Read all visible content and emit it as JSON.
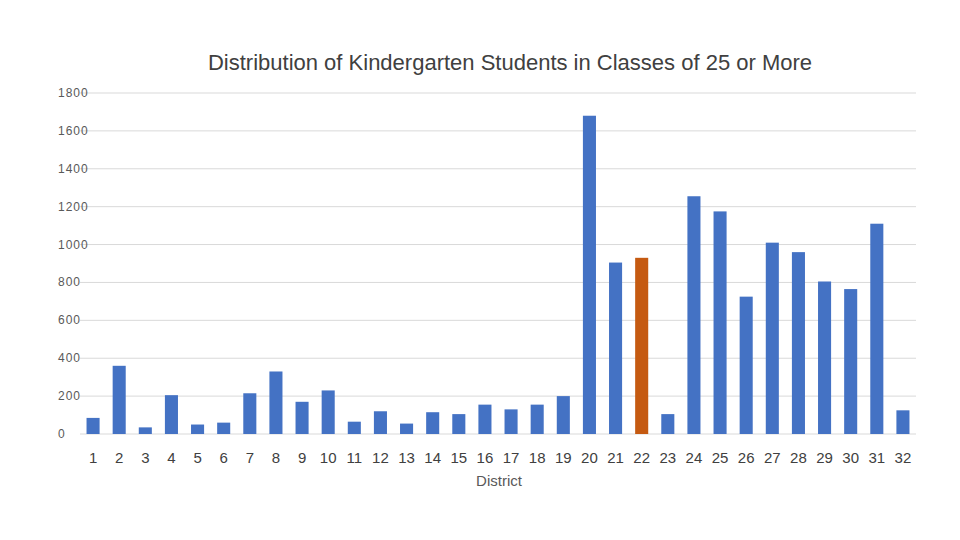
{
  "chart_data": {
    "type": "bar",
    "title": "Distribution of Kindergarten Students in Classes of 25 or More",
    "x_label": "District",
    "categories": [
      "1",
      "2",
      "3",
      "4",
      "5",
      "6",
      "7",
      "8",
      "9",
      "10",
      "11",
      "12",
      "13",
      "14",
      "15",
      "16",
      "17",
      "18",
      "19",
      "20",
      "21",
      "22",
      "23",
      "24",
      "25",
      "26",
      "27",
      "28",
      "29",
      "30",
      "31",
      "32"
    ],
    "values": [
      85,
      360,
      35,
      205,
      50,
      60,
      215,
      330,
      170,
      230,
      65,
      120,
      55,
      115,
      105,
      155,
      130,
      155,
      200,
      1680,
      905,
      930,
      105,
      1255,
      1175,
      725,
      1010,
      960,
      805,
      765,
      1110,
      125
    ],
    "colors": [
      "#4472c4",
      "#4472c4",
      "#4472c4",
      "#4472c4",
      "#4472c4",
      "#4472c4",
      "#4472c4",
      "#4472c4",
      "#4472c4",
      "#4472c4",
      "#4472c4",
      "#4472c4",
      "#4472c4",
      "#4472c4",
      "#4472c4",
      "#4472c4",
      "#4472c4",
      "#4472c4",
      "#4472c4",
      "#4472c4",
      "#4472c4",
      "#c55a11",
      "#4472c4",
      "#4472c4",
      "#4472c4",
      "#4472c4",
      "#4472c4",
      "#4472c4",
      "#4472c4",
      "#4472c4",
      "#4472c4",
      "#4472c4"
    ],
    "ylim": [
      0,
      1800
    ],
    "yticks": [
      0,
      200,
      400,
      600,
      800,
      1000,
      1200,
      1400,
      1600,
      1800
    ],
    "grid": true
  }
}
